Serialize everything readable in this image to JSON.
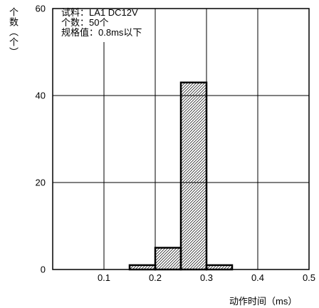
{
  "chart_data": {
    "type": "bar",
    "bins": [
      [
        0.15,
        0.2
      ],
      [
        0.2,
        0.25
      ],
      [
        0.25,
        0.3
      ],
      [
        0.3,
        0.35
      ]
    ],
    "values": [
      1,
      5,
      43,
      1
    ],
    "xlabel": "动作时间（ms）",
    "ylabel": "个数（个）",
    "xlim": [
      0,
      0.5
    ],
    "ylim": [
      0,
      60
    ],
    "xticks": [
      "0.1",
      "0.2",
      "0.3",
      "0.4",
      "0.5"
    ],
    "yticks": [
      "0",
      "20",
      "40",
      "60"
    ],
    "grid": true,
    "annotations": [
      "试料：LA1 DC12V",
      "个数：50个",
      "规格值：0.8ms以下"
    ],
    "colors": {
      "line": "#000000",
      "background": "#ffffff"
    }
  }
}
